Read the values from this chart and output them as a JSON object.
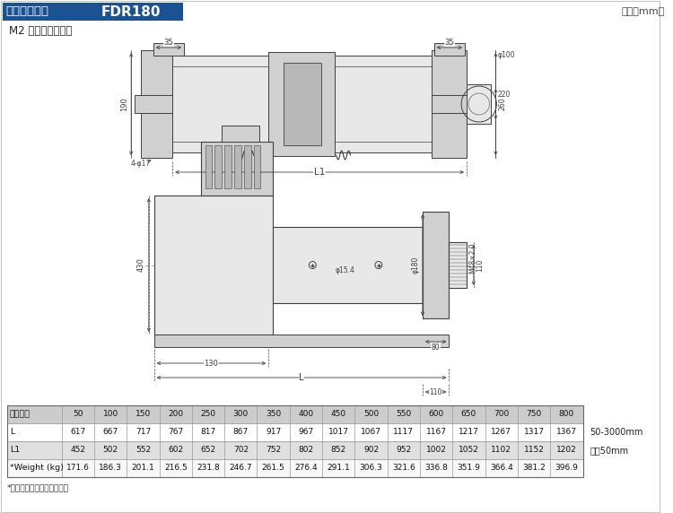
{
  "title1": "折返式外形图",
  "title2": "FDR180",
  "unit": "单位（mm）",
  "subtitle": "M2 底板式安装方式",
  "title_bg": "#1a5294",
  "title_fg": "#ffffff",
  "bg_color": "#ffffff",
  "table_header_bg": "#cccccc",
  "table_row1_bg": "#ffffff",
  "table_row2_bg": "#e0e0e0",
  "table_row3_bg": "#f8f8f8",
  "table_cols": [
    "有效行程",
    "50",
    "100",
    "150",
    "200",
    "250",
    "300",
    "350",
    "400",
    "450",
    "500",
    "550",
    "600",
    "650",
    "700",
    "750",
    "800"
  ],
  "table_L": [
    "L",
    "617",
    "667",
    "717",
    "767",
    "817",
    "867",
    "917",
    "967",
    "1017",
    "1067",
    "1117",
    "1167",
    "1217",
    "1267",
    "1317",
    "1367"
  ],
  "table_L1": [
    "L1",
    "452",
    "502",
    "552",
    "602",
    "652",
    "702",
    "752",
    "802",
    "852",
    "902",
    "952",
    "1002",
    "1052",
    "1102",
    "1152",
    "1202"
  ],
  "table_weight": [
    "*Weight (kg)",
    "171.6",
    "186.3",
    "201.1",
    "216.5",
    "231.8",
    "246.7",
    "261.5",
    "276.4",
    "291.1",
    "306.3",
    "321.6",
    "336.8",
    "351.9",
    "366.4",
    "381.2",
    "396.9"
  ],
  "note": "*重量不包含电机自身重量。",
  "range_note1": "50-3000mm",
  "range_note2": "间隔50mm",
  "lc": "#404040",
  "dc": "#404040",
  "fc_light": "#e8e8e8",
  "fc_mid": "#d0d0d0",
  "fc_dark": "#b8b8b8"
}
